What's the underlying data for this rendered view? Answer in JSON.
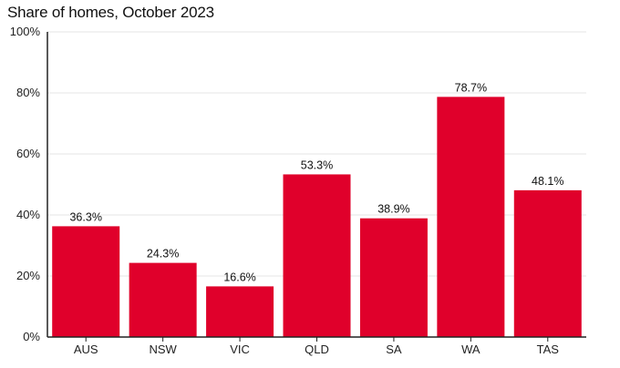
{
  "chart_data": {
    "type": "bar",
    "title": "Share of homes, October 2023",
    "categories": [
      "AUS",
      "NSW",
      "VIC",
      "QLD",
      "SA",
      "WA",
      "TAS"
    ],
    "values": [
      36.3,
      24.3,
      16.6,
      53.3,
      38.9,
      78.7,
      48.1
    ],
    "value_labels": [
      "36.3%",
      "24.3%",
      "16.6%",
      "53.3%",
      "38.9%",
      "78.7%",
      "48.1%"
    ],
    "y_ticks": [
      0,
      20,
      40,
      60,
      80,
      100
    ],
    "y_tick_labels": [
      "0%",
      "20%",
      "40%",
      "60%",
      "80%",
      "100%"
    ],
    "ylim": [
      0,
      100
    ],
    "xlabel": "",
    "ylabel": "",
    "grid": true,
    "legend": "none",
    "bar_color": "#e0002b",
    "grid_color": "#e6e6e6"
  }
}
